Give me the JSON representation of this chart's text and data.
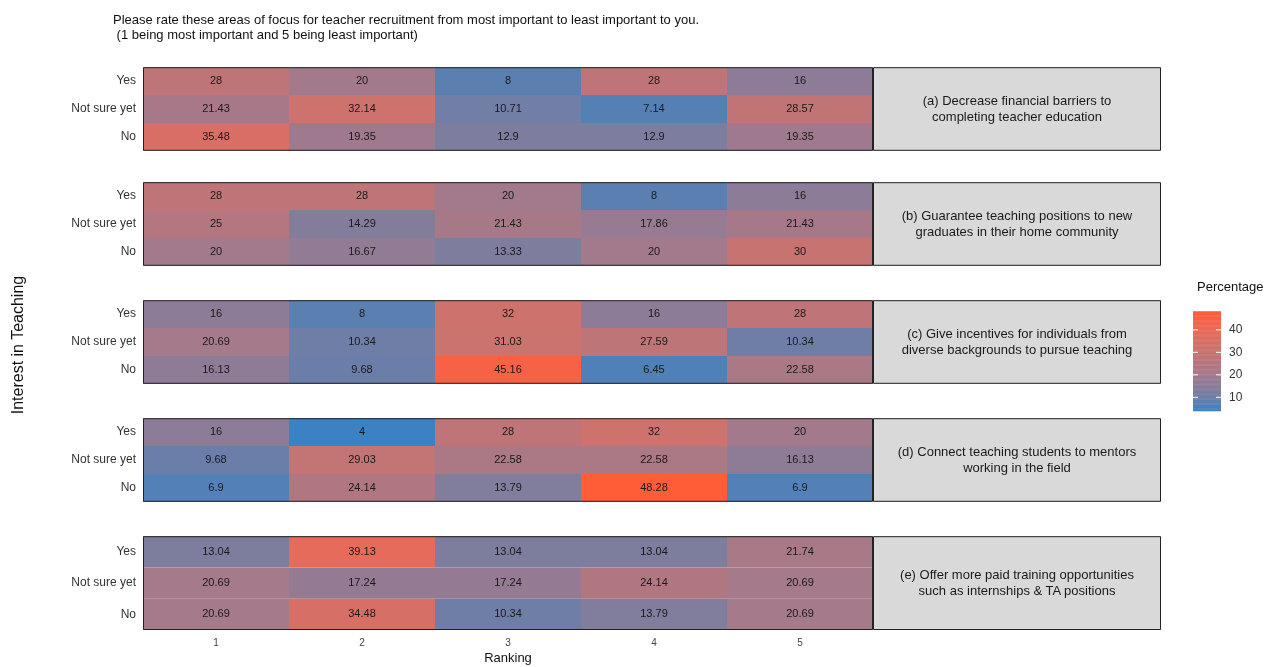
{
  "chart_data": [
    {
      "type": "heatmap",
      "y2label": "(a) Decrease financial barriers to completing teacher education",
      "annotations": [
        "Please rate these areas of focus for teacher recruitment from most important to least important to you.\n (1 being most important and 5 being least important)"
      ],
      "categories": [
        "1",
        "2",
        "3",
        "4",
        "5"
      ],
      "y_categories": [
        "Yes",
        "Not sure yet",
        "No"
      ],
      "cells": [
        [
          28,
          20,
          8,
          28,
          16
        ],
        [
          21.43,
          32.14,
          10.71,
          7.14,
          28.57
        ],
        [
          35.48,
          19.35,
          12.9,
          12.9,
          19.35
        ]
      ],
      "data_labels": true,
      "clim": [
        4,
        48.28
      ],
      "cticks": [
        10,
        20,
        30,
        40
      ],
      "clabel": "Percentage",
      "tick_labels": "y"
    },
    {
      "type": "heatmap",
      "y2label": "(b) Guarantee teaching positions to new graduates in their home community",
      "categories": [
        "1",
        "2",
        "3",
        "4",
        "5"
      ],
      "y_categories": [
        "Yes",
        "Not sure yet",
        "No"
      ],
      "cells": [
        [
          28,
          28,
          20,
          8,
          16
        ],
        [
          25,
          14.29,
          21.43,
          17.86,
          21.43
        ],
        [
          20,
          16.67,
          13.33,
          20,
          30
        ]
      ],
      "data_labels": true,
      "tick_labels": "y"
    },
    {
      "type": "heatmap",
      "y2label": "(c) Give incentives for individuals from diverse backgrounds to pursue teaching",
      "ylabel": "Interest in Teaching",
      "categories": [
        "1",
        "2",
        "3",
        "4",
        "5"
      ],
      "y_categories": [
        "Yes",
        "Not sure yet",
        "No"
      ],
      "cells": [
        [
          16,
          8,
          32,
          16,
          28
        ],
        [
          20.69,
          10.34,
          31.03,
          27.59,
          10.34
        ],
        [
          16.13,
          9.68,
          45.16,
          6.45,
          22.58
        ]
      ],
      "data_labels": true,
      "tick_labels": "y"
    },
    {
      "type": "heatmap",
      "y2label": "(d) Connect teaching students to mentors working in the field",
      "categories": [
        "1",
        "2",
        "3",
        "4",
        "5"
      ],
      "y_categories": [
        "Yes",
        "Not sure yet",
        "No"
      ],
      "cells": [
        [
          16,
          4,
          28,
          32,
          20
        ],
        [
          9.68,
          29.03,
          22.58,
          22.58,
          16.13
        ],
        [
          6.9,
          24.14,
          13.79,
          48.28,
          6.9
        ]
      ],
      "data_labels": true,
      "tick_labels": "y"
    },
    {
      "type": "heatmap",
      "y2label": "(e) Offer more paid training opportunities such as internships & TA positions",
      "xlabel": "Ranking",
      "categories": [
        "1",
        "2",
        "3",
        "4",
        "5"
      ],
      "y_categories": [
        "Yes",
        "Not sure yet",
        "No"
      ],
      "cells": [
        [
          13.04,
          39.13,
          13.04,
          13.04,
          21.74
        ],
        [
          20.69,
          17.24,
          17.24,
          24.14,
          20.69
        ],
        [
          20.69,
          34.48,
          10.34,
          13.79,
          20.69
        ]
      ],
      "data_labels": true
    }
  ]
}
